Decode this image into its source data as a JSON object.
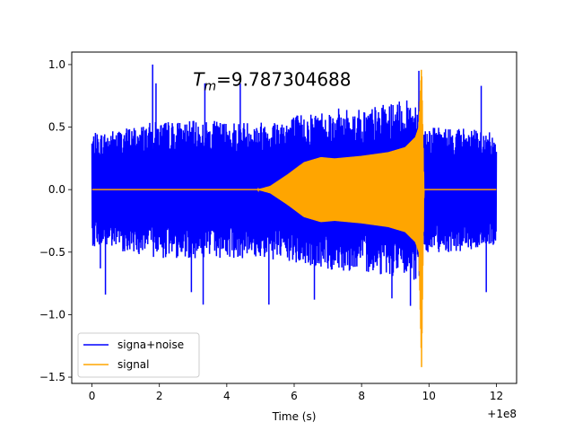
{
  "chart_data": {
    "type": "line",
    "title": "",
    "xlabel": "Time (s)",
    "ylabel": "",
    "x_offset_label": "+1e8",
    "xlim": [
      -0.6,
      12.6
    ],
    "ylim": [
      -1.55,
      1.1
    ],
    "xticks": [
      0,
      2,
      4,
      6,
      8,
      10,
      12
    ],
    "yticks": [
      -1.5,
      -1.0,
      -0.5,
      0.0,
      0.5,
      1.0
    ],
    "xtick_labels": [
      "0",
      "2",
      "4",
      "6",
      "8",
      "10",
      "12"
    ],
    "ytick_labels": [
      "−1.5",
      "−1.0",
      "−0.5",
      "0.0",
      "0.5",
      "1.0"
    ],
    "grid": false,
    "legend_placement": "lower-left",
    "annotation": {
      "symbol": "T",
      "subscript": "m",
      "text": "=9.787304688",
      "x": 3.0,
      "y": 0.83
    },
    "series": [
      {
        "name": "signa+noise",
        "color": "#0000ff",
        "envelope": {
          "x": [
            0,
            1,
            2,
            3,
            4,
            5,
            6,
            7,
            8,
            9,
            9.5,
            9.78,
            9.8,
            10,
            11,
            12
          ],
          "upper": [
            0.45,
            0.5,
            0.55,
            0.55,
            0.55,
            0.55,
            0.6,
            0.65,
            0.65,
            0.7,
            0.72,
            0.8,
            0.5,
            0.5,
            0.5,
            0.45
          ],
          "lower": [
            -0.45,
            -0.5,
            -0.55,
            -0.55,
            -0.55,
            -0.55,
            -0.6,
            -0.65,
            -0.65,
            -0.7,
            -0.72,
            -0.8,
            -0.5,
            -0.5,
            -0.5,
            -0.45
          ]
        },
        "spikes": [
          {
            "x": 1.8,
            "y": 1.0
          },
          {
            "x": 1.9,
            "y": 0.85
          },
          {
            "x": 3.35,
            "y": 0.85
          },
          {
            "x": 4.4,
            "y": 0.85
          },
          {
            "x": 0.25,
            "y": -0.63
          },
          {
            "x": 0.4,
            "y": -0.84
          },
          {
            "x": 2.95,
            "y": -0.82
          },
          {
            "x": 3.3,
            "y": -0.92
          },
          {
            "x": 5.25,
            "y": -0.92
          },
          {
            "x": 6.6,
            "y": -0.88
          },
          {
            "x": 8.9,
            "y": -0.87
          },
          {
            "x": 9.45,
            "y": -0.93
          },
          {
            "x": 9.7,
            "y": 0.95
          },
          {
            "x": 11.55,
            "y": 0.83
          },
          {
            "x": 11.7,
            "y": -0.82
          }
        ]
      },
      {
        "name": "signal",
        "color": "#ffa500",
        "envelope": {
          "x": [
            0,
            4.9,
            5.3,
            5.8,
            6.3,
            6.8,
            7.2,
            8.0,
            8.8,
            9.3,
            9.6,
            9.7,
            9.78,
            9.85,
            12
          ],
          "upper": [
            0.0,
            0.0,
            0.03,
            0.12,
            0.22,
            0.26,
            0.25,
            0.27,
            0.3,
            0.34,
            0.42,
            0.5,
            1.0,
            0.0,
            0.0
          ],
          "lower": [
            0.0,
            0.0,
            -0.03,
            -0.12,
            -0.22,
            -0.26,
            -0.25,
            -0.27,
            -0.3,
            -0.34,
            -0.42,
            -0.5,
            -1.42,
            0.0,
            0.0
          ]
        }
      }
    ]
  }
}
